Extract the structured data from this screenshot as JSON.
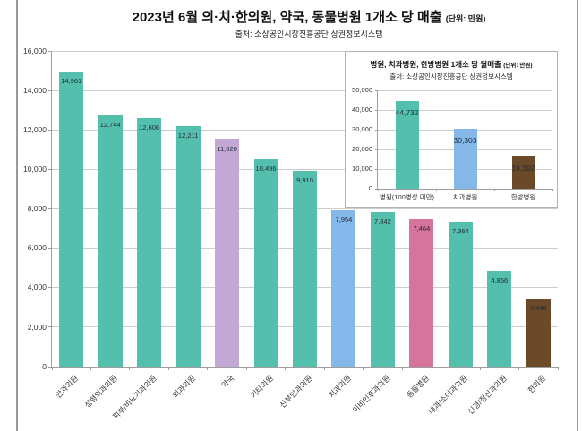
{
  "page": {
    "title": "2023년 6월 의·치·한의원, 약국, 동물병원 1개소 당 매출",
    "unit_label": "(단위: 만원)",
    "subtitle": "출처: 소상공인시장진흥공단 상권정보시스템"
  },
  "colors": {
    "teal": "#55BFAD",
    "purple": "#C3A8D5",
    "blue": "#84B8E9",
    "pink": "#D5759C",
    "brown": "#6B4A2A",
    "value_text": "#1F2A38",
    "gridline": "#CECECE",
    "axis": "#9E9E9E"
  },
  "chart_data": [
    {
      "type": "bar",
      "title": "2023년 6월 의·치·한의원, 약국, 동물병원 1개소 당 매출",
      "unit_label": "(단위: 만원)",
      "subtitle": "출처: 소상공인시장진흥공단 상권정보시스템",
      "categories": [
        "안과의원",
        "성형외과의원",
        "피부/비뇨기과의원",
        "외과의원",
        "약국",
        "기타의원",
        "산부인과의원",
        "치과의원",
        "이비인후과의원",
        "동물병원",
        "내과/소아과의원",
        "신경/정신과의원",
        "한의원"
      ],
      "values": [
        14961,
        12744,
        12606,
        12211,
        11520,
        10496,
        9910,
        7954,
        7842,
        7464,
        7364,
        4856,
        3446
      ],
      "bar_colors": [
        "teal",
        "teal",
        "teal",
        "teal",
        "purple",
        "teal",
        "teal",
        "blue",
        "teal",
        "pink",
        "teal",
        "teal",
        "brown"
      ],
      "ylim": [
        0,
        16000
      ],
      "ytick_step": 2000,
      "grid": true,
      "legend": "none",
      "value_labels": true
    },
    {
      "type": "bar",
      "title": "병원, 치과병원, 한방병원 1개소 당 월매출",
      "unit_label": "(단위: 만원)",
      "subtitle": "출처: 소상공인시장진흥공단 상권정보시스템",
      "categories": [
        "병원(100병상 미만)",
        "치과병원",
        "한방병원"
      ],
      "values": [
        44732,
        30303,
        16192
      ],
      "bar_colors": [
        "teal",
        "blue",
        "brown"
      ],
      "ylim": [
        0,
        50000
      ],
      "ytick_step": 10000,
      "grid": true,
      "legend": "none",
      "value_labels": true
    }
  ]
}
